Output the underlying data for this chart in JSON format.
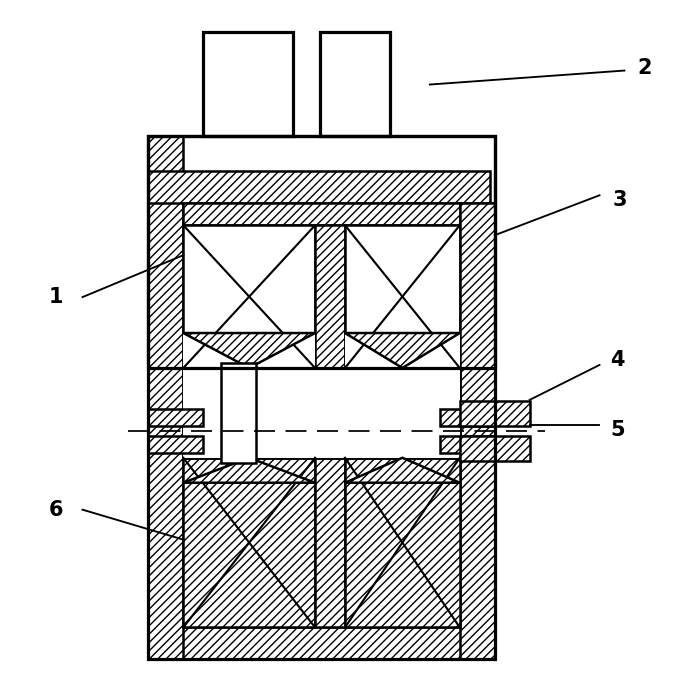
{
  "bg_color": "#ffffff",
  "lw": 1.8,
  "fig_w": 6.9,
  "fig_h": 6.95,
  "dpi": 100
}
